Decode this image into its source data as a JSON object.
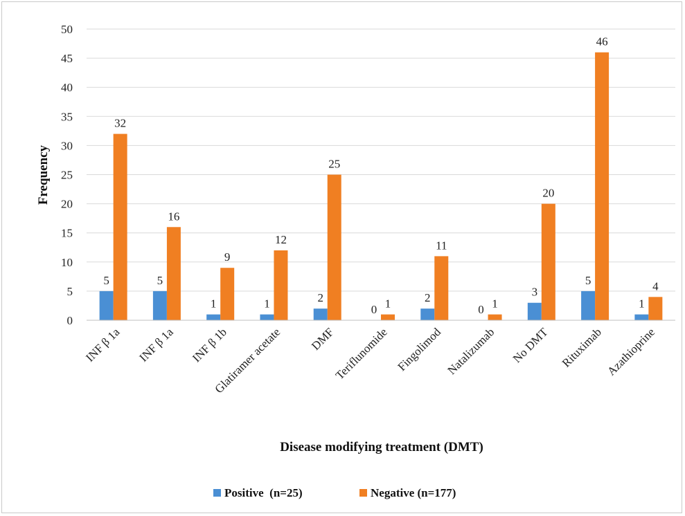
{
  "chart_data": {
    "type": "bar",
    "categories": [
      "INF β 1a",
      "INF β 1a",
      "INF β 1b",
      "Glatiramer acetate",
      "DMF",
      "Teriflunomide",
      "Fingolimod",
      "Natalizumab",
      "No DMT",
      "Rituximab",
      "Azathioprine"
    ],
    "series": [
      {
        "name": "Positive  (n=25)",
        "color": "#4a8fd4",
        "values": [
          5,
          5,
          1,
          1,
          2,
          0,
          2,
          0,
          3,
          5,
          1
        ]
      },
      {
        "name": "Negative (n=177)",
        "color": "#f07f22",
        "values": [
          32,
          16,
          9,
          12,
          25,
          1,
          11,
          1,
          20,
          46,
          4
        ]
      }
    ],
    "xlabel": "Disease modifying  treatment (DMT)",
    "ylabel": "Frequency",
    "ylim": [
      0,
      50
    ],
    "yticks": [
      0,
      5,
      10,
      15,
      20,
      25,
      30,
      35,
      40,
      45,
      50
    ],
    "grid": true,
    "legend_position": "bottom"
  }
}
